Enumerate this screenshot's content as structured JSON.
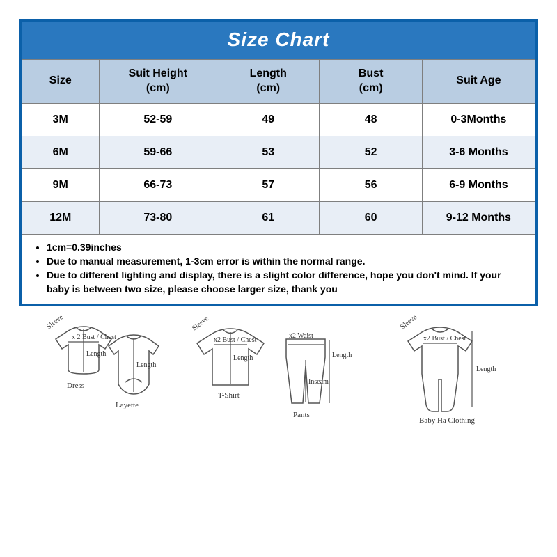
{
  "title": "Size Chart",
  "columns": [
    "Size",
    "Suit Height\n(cm)",
    "Length\n(cm)",
    "Bust\n(cm)",
    "Suit  Age"
  ],
  "rows": [
    [
      "3M",
      "52-59",
      "49",
      "48",
      "0-3Months"
    ],
    [
      "6M",
      "59-66",
      "53",
      "52",
      "3-6 Months"
    ],
    [
      "9M",
      "66-73",
      "57",
      "56",
      "6-9 Months"
    ],
    [
      "12M",
      "73-80",
      "61",
      "60",
      "9-12 Months"
    ]
  ],
  "columnWidths": [
    "15%",
    "23%",
    "20%",
    "20%",
    "22%"
  ],
  "notes": [
    "1cm=0.39inches",
    "Due to manual measurement, 1-3cm error is within the normal range.",
    "Due to different lighting and display, there is a slight color difference, hope you don't mind. If your baby is between two size, please choose larger size, thank you"
  ],
  "diagramLabels": {
    "sleeve": "Sleeve",
    "bust": "x 2 Bust / Chest",
    "bust2": "x2 Bust / Chest",
    "waist": "x2 Waist",
    "length": "Length",
    "inseam": "Inseam",
    "dress": "Dress",
    "layette": "Layette",
    "tshirt": "T-Shirt",
    "pants": "Pants",
    "babyHa": "Baby Ha Clothing"
  },
  "colors": {
    "titleBg": "#2a78bf",
    "headerBg": "#b9cde2",
    "rowEvenBg": "#e8eef6",
    "rowOddBg": "#ffffff",
    "border": "#7f7f7f",
    "outer": "#0b60a9",
    "text": "#000000",
    "titleText": "#ffffff"
  }
}
